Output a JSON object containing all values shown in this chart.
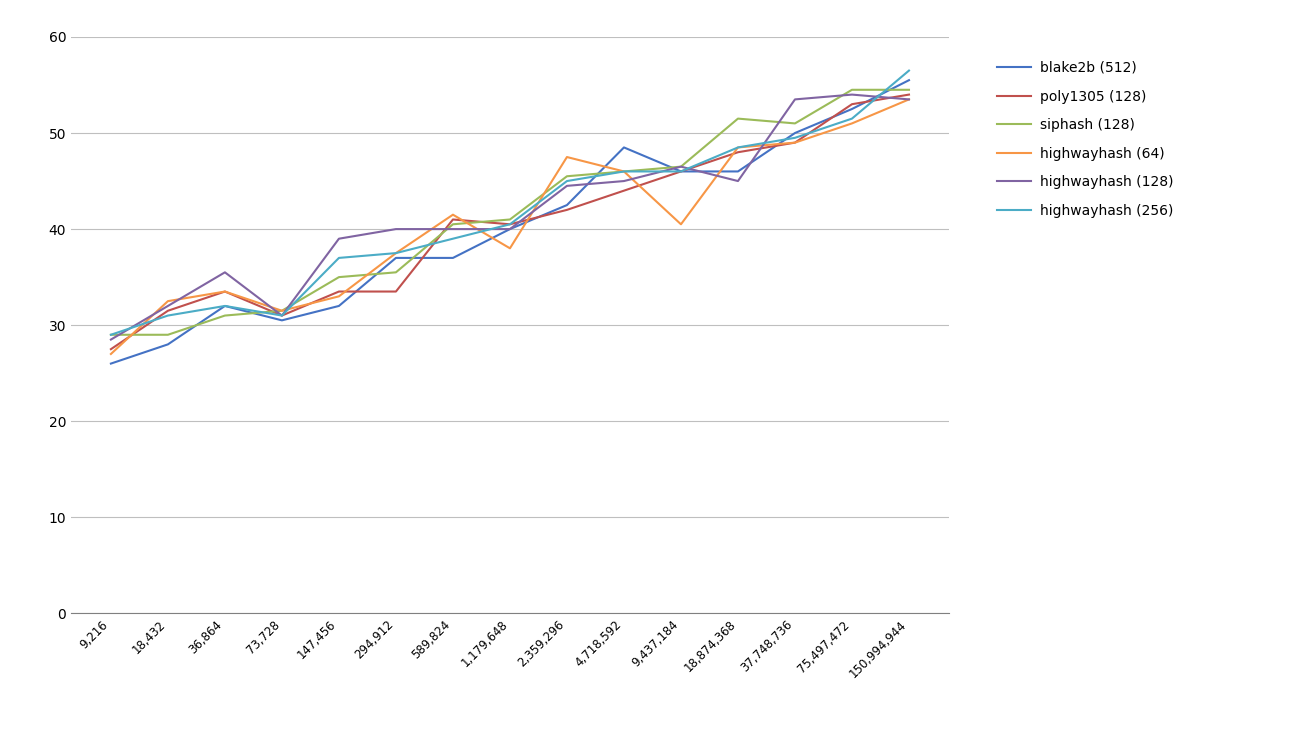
{
  "x_labels": [
    "9,216",
    "18,432",
    "36,864",
    "73,728",
    "147,456",
    "294,912",
    "589,824",
    "1,179,648",
    "2,359,296",
    "4,718,592",
    "9,437,184",
    "18,874,368",
    "37,748,736",
    "75,497,472",
    "150,994,944"
  ],
  "series": [
    {
      "name": "blake2b (512)",
      "color": "#4472C4",
      "values": [
        26.0,
        28.0,
        32.0,
        30.5,
        32.0,
        37.0,
        37.0,
        40.0,
        42.5,
        48.5,
        46.0,
        46.0,
        50.0,
        52.5,
        55.5
      ]
    },
    {
      "name": "poly1305 (128)",
      "color": "#C0504D",
      "values": [
        27.5,
        31.5,
        33.5,
        31.0,
        33.5,
        33.5,
        41.0,
        40.5,
        42.0,
        44.0,
        46.0,
        48.0,
        49.0,
        53.0,
        54.0
      ]
    },
    {
      "name": "siphash (128)",
      "color": "#9BBB59",
      "values": [
        29.0,
        29.0,
        31.0,
        31.5,
        35.0,
        35.5,
        40.5,
        41.0,
        45.5,
        46.0,
        46.5,
        51.5,
        51.0,
        54.5,
        54.5
      ]
    },
    {
      "name": "highwayhash (64)",
      "color": "#F79646",
      "values": [
        27.0,
        32.5,
        33.5,
        31.5,
        33.0,
        37.5,
        41.5,
        38.0,
        47.5,
        46.0,
        40.5,
        48.5,
        49.0,
        51.0,
        53.5
      ]
    },
    {
      "name": "highwayhash (128)",
      "color": "#8064A2",
      "values": [
        28.5,
        32.0,
        35.5,
        31.0,
        39.0,
        40.0,
        40.0,
        40.0,
        44.5,
        45.0,
        46.5,
        45.0,
        53.5,
        54.0,
        53.5
      ]
    },
    {
      "name": "highwayhash (256)",
      "color": "#4BACC6",
      "values": [
        29.0,
        31.0,
        32.0,
        31.0,
        37.0,
        37.5,
        39.0,
        40.5,
        45.0,
        46.0,
        46.0,
        48.5,
        49.5,
        51.5,
        56.5
      ]
    }
  ],
  "ylim": [
    0,
    60
  ],
  "yticks": [
    0,
    10,
    20,
    30,
    40,
    50,
    60
  ],
  "background_color": "#FFFFFF",
  "grid_color": "#BFBFBF",
  "line_width": 1.5,
  "xlabel_fontsize": 8.5,
  "ylabel_fontsize": 10,
  "legend_fontsize": 10
}
